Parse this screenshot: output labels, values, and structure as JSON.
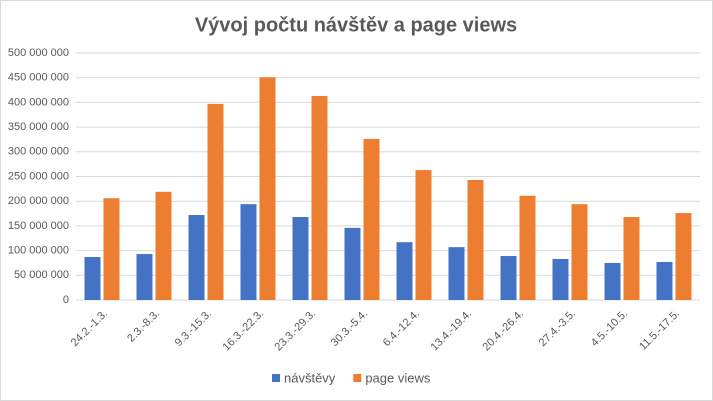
{
  "chart_data": {
    "type": "bar",
    "title": "Vývoj počtu návštěv a page views",
    "categories": [
      "24.2.-1.3.",
      "2.3.-8.3.",
      "9.3.-15.3.",
      "16.3.-22.3.",
      "23.3.-29.3.",
      "30.3.-5.4.",
      "6.4.-12.4.",
      "13.4.-19.4.",
      "20.4.-26.4.",
      "27.4.-3.5.",
      "4.5.-10.5.",
      "11.5.-17.5."
    ],
    "series": [
      {
        "name": "návštěvy",
        "color": "#4472c4",
        "values": [
          87000000,
          93000000,
          172000000,
          194000000,
          168000000,
          146000000,
          117000000,
          107000000,
          89000000,
          83000000,
          75000000,
          77000000
        ]
      },
      {
        "name": "page views",
        "color": "#ed7d31",
        "values": [
          206000000,
          219000000,
          397000000,
          451000000,
          413000000,
          326000000,
          263000000,
          243000000,
          211000000,
          194000000,
          168000000,
          176000000
        ]
      }
    ],
    "ylim": [
      0,
      500000000
    ],
    "yticks": [
      0,
      {
        "value": 50000000,
        "label": "50 000 000"
      },
      {
        "value": 100000000,
        "label": "100 000 000"
      },
      {
        "value": 150000000,
        "label": "150 000 000"
      },
      {
        "value": 200000000,
        "label": "200 000 000"
      },
      {
        "value": 250000000,
        "label": "250 000 000"
      },
      {
        "value": 300000000,
        "label": "300 000 000"
      },
      {
        "value": 350000000,
        "label": "350 000 000"
      },
      {
        "value": 400000000,
        "label": "400 000 000"
      },
      {
        "value": 450000000,
        "label": "450 000 000"
      },
      {
        "value": 500000000,
        "label": "500 000 000"
      }
    ],
    "grid": true,
    "legend": "bottom"
  }
}
